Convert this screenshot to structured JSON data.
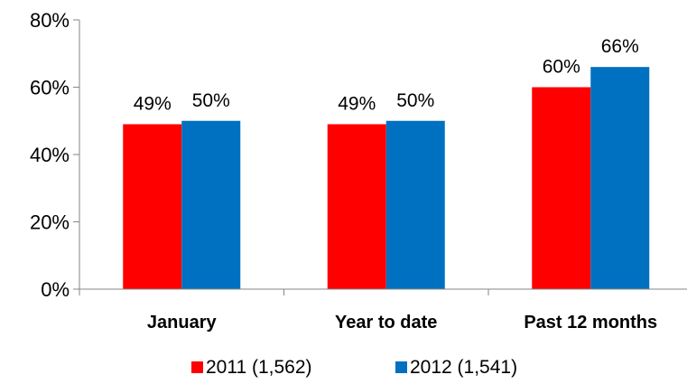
{
  "chart_data": {
    "type": "bar",
    "categories": [
      "January",
      "Year to date",
      "Past 12 months"
    ],
    "series": [
      {
        "name": "2011 (1,562)",
        "values": [
          49,
          49,
          60
        ],
        "labels": [
          "49%",
          "49%",
          "60%"
        ],
        "color": "#ff0000"
      },
      {
        "name": "2012 (1,541)",
        "values": [
          50,
          50,
          66
        ],
        "labels": [
          "50%",
          "50%",
          "66%"
        ],
        "color": "#0070c0"
      }
    ],
    "yticks": [
      {
        "value": 0,
        "label": "0%"
      },
      {
        "value": 20,
        "label": "20%"
      },
      {
        "value": 40,
        "label": "40%"
      },
      {
        "value": 60,
        "label": "60%"
      },
      {
        "value": 80,
        "label": "80%"
      }
    ],
    "ylim": [
      0,
      80
    ],
    "grid": false,
    "legend": "bottom-center"
  }
}
